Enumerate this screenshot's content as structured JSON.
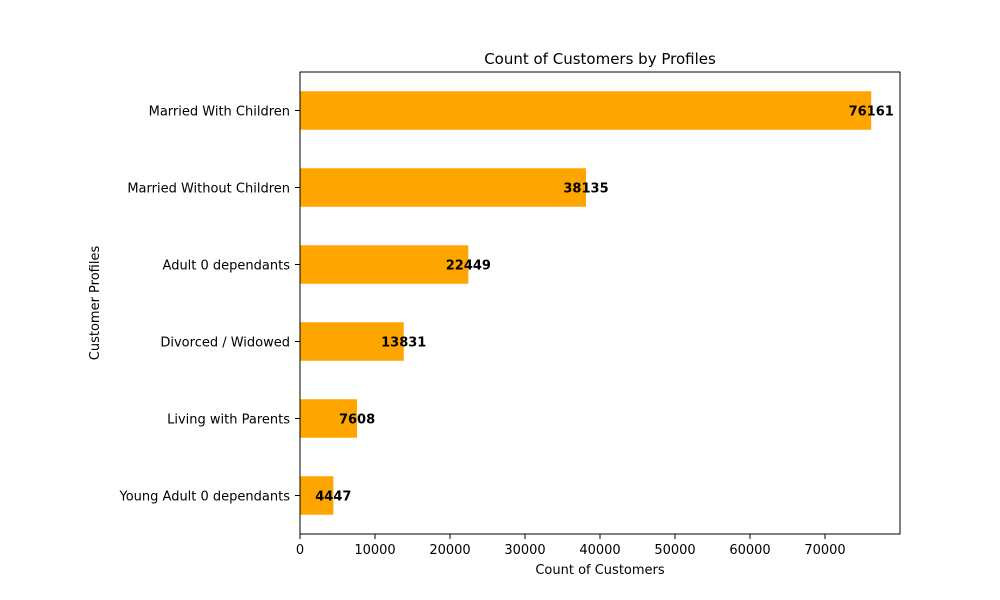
{
  "chart_data": {
    "type": "bar",
    "orientation": "horizontal",
    "title": "Count of Customers by Profiles",
    "xlabel": "Count of Customers",
    "ylabel": "Customer Profiles",
    "categories": [
      "Married With Children",
      "Married Without Children",
      "Adult 0 dependants",
      "Divorced / Widowed",
      "Living with Parents",
      "Young Adult 0 dependants"
    ],
    "values": [
      76161,
      38135,
      22449,
      13831,
      7608,
      4447
    ],
    "xlim": [
      0,
      80000
    ],
    "xticks": [
      0,
      10000,
      20000,
      30000,
      40000,
      50000,
      60000,
      70000
    ],
    "bar_color": "#FFA500",
    "grid": false,
    "legend": "none"
  }
}
